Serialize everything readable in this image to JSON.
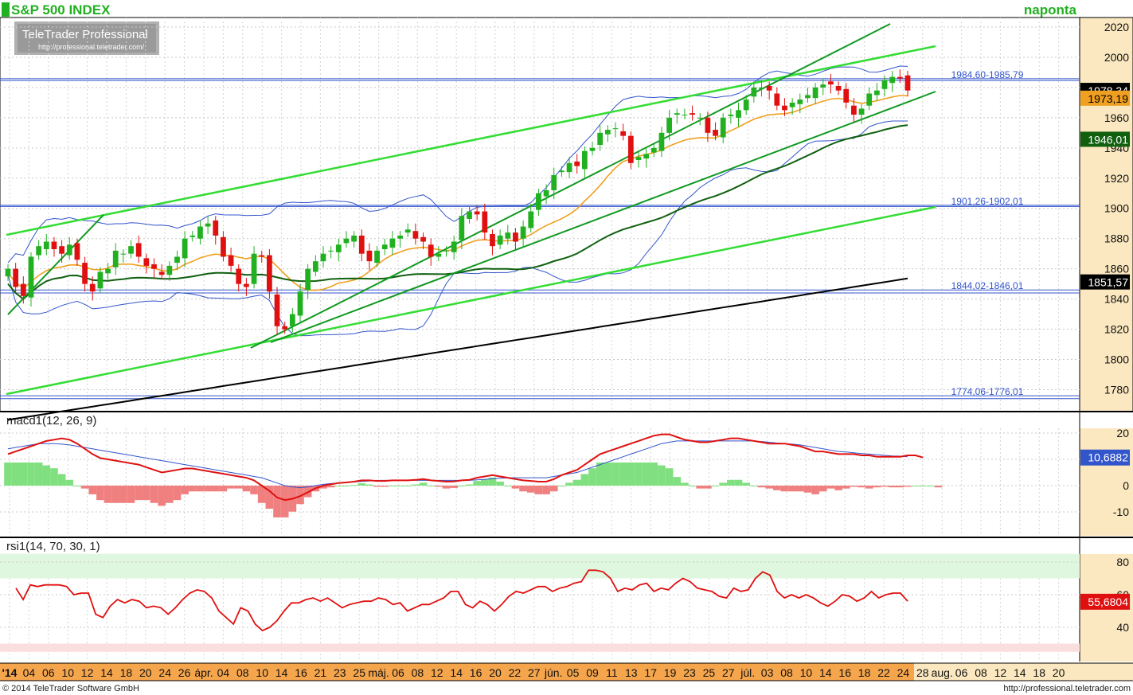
{
  "header": {
    "title": "S&P 500 INDEX",
    "period": "naponta",
    "logo_main": "TeleTrader Professional",
    "logo_url": "http://professional.teletrader.com/"
  },
  "footer": {
    "copyright": "© 2014 TeleTrader Software GmbH",
    "url": "http://professional.teletrader.com"
  },
  "colors": {
    "up": "#20b020",
    "down": "#e01010",
    "axis_bg": "#fbe8c0",
    "date_bar": "#f5a54c",
    "bollinger": "#3355cc",
    "ma_fast": "#f0a020",
    "ma_mid": "#106010",
    "ma_slow": "#000000",
    "channel_light": "#33dd33",
    "channel_dark": "#119922",
    "hline": "#3355cc"
  },
  "chart_data": [
    {
      "type": "candlestick",
      "name": "S&P 500 INDEX",
      "ylim": [
        1770,
        2030
      ],
      "y_ticks": [
        1780,
        1800,
        1820,
        1840,
        1860,
        1880,
        1900,
        1920,
        1940,
        1960,
        1980,
        2000,
        2020
      ],
      "x_labels": [
        "'14",
        "04",
        "06",
        "10",
        "12",
        "14",
        "18",
        "20",
        "24",
        "26",
        "ápr.",
        "04",
        "08",
        "10",
        "14",
        "16",
        "21",
        "23",
        "25",
        "máj.",
        "06",
        "08",
        "12",
        "14",
        "16",
        "20",
        "22",
        "27",
        "jún.",
        "05",
        "09",
        "11",
        "13",
        "17",
        "19",
        "23",
        "25",
        "27",
        "júl.",
        "03",
        "08",
        "10",
        "14",
        "16",
        "18",
        "22",
        "24",
        "28",
        "aug.",
        "06",
        "08",
        "12",
        "14",
        "18",
        "20"
      ],
      "price_tags": [
        {
          "value": "1978,34",
          "num": 1978.34,
          "bg": "#000000"
        },
        {
          "value": "1973,19",
          "num": 1973.19,
          "bg": "#f0a020"
        },
        {
          "value": "1946,01",
          "num": 1946.01,
          "bg": "#106010"
        },
        {
          "value": "1851,57",
          "num": 1851.57,
          "bg": "#000000"
        }
      ],
      "hlines": [
        {
          "label": "1984,60-1985,79",
          "low": 1984.6,
          "high": 1985.79
        },
        {
          "label": "1901,26-1902,01",
          "low": 1901.26,
          "high": 1902.01
        },
        {
          "label": "1844,02-1846,01",
          "low": 1844.02,
          "high": 1846.01
        },
        {
          "label": "1774,06-1776,01",
          "low": 1774.06,
          "high": 1776.01
        }
      ],
      "closes": [
        1860,
        1848,
        1842,
        1868,
        1875,
        1878,
        1873,
        1870,
        1876,
        1866,
        1850,
        1845,
        1858,
        1860,
        1872,
        1870,
        1875,
        1868,
        1862,
        1860,
        1856,
        1862,
        1868,
        1880,
        1882,
        1888,
        1890,
        1882,
        1868,
        1862,
        1850,
        1848,
        1870,
        1868,
        1845,
        1822,
        1820,
        1830,
        1845,
        1860,
        1865,
        1870,
        1872,
        1876,
        1880,
        1882,
        1870,
        1865,
        1872,
        1876,
        1880,
        1882,
        1886,
        1880,
        1878,
        1868,
        1870,
        1872,
        1878,
        1895,
        1898,
        1896,
        1884,
        1875,
        1882,
        1884,
        1878,
        1888,
        1898,
        1910,
        1912,
        1922,
        1925,
        1930,
        1928,
        1938,
        1940,
        1950,
        1952,
        1953,
        1948,
        1930,
        1934,
        1936,
        1940,
        1950,
        1960,
        1963,
        1962,
        1962,
        1960,
        1950,
        1948,
        1960,
        1962,
        1965,
        1972,
        1980,
        1980,
        1978,
        1968,
        1965,
        1970,
        1972,
        1975,
        1980,
        1982,
        1982,
        1978,
        1970,
        1962,
        1966,
        1976,
        1978,
        1985,
        1987,
        1986,
        1978
      ]
    },
    {
      "type": "line",
      "name": "macd1(12, 26, 9)",
      "ylim": [
        -15,
        22
      ],
      "y_ticks": [
        -10,
        0,
        10,
        20
      ],
      "value_tag": "10,6882",
      "macd": [
        12,
        13,
        14,
        15,
        16,
        17,
        17.5,
        18,
        17.5,
        16,
        14,
        12,
        10.5,
        10,
        9.5,
        9,
        8.5,
        8,
        7,
        6,
        5,
        5.5,
        6,
        6.5,
        6.5,
        6,
        5.5,
        5,
        4.5,
        4,
        3.5,
        3,
        2,
        0,
        -2,
        -4.5,
        -5.5,
        -5,
        -4,
        -2.5,
        -1,
        0,
        0.5,
        1,
        1.2,
        1.5,
        2,
        2,
        1.8,
        1.8,
        2,
        2,
        2,
        2.2,
        2.5,
        2,
        1.8,
        1.5,
        1.6,
        2,
        2.2,
        3,
        3.5,
        4,
        3.5,
        3,
        2.5,
        2,
        1.8,
        1.5,
        1.5,
        2.5,
        4,
        5,
        6,
        8,
        10,
        12,
        13,
        14,
        15,
        16,
        17,
        18,
        19,
        19.5,
        19.5,
        18.5,
        17.5,
        17,
        16.5,
        16.5,
        17,
        17.5,
        18,
        18,
        17.5,
        17,
        16.5,
        16,
        16,
        16,
        15.5,
        15,
        14,
        13,
        13,
        12.5,
        12,
        12,
        12,
        11.5,
        11.5,
        11,
        11,
        11,
        11,
        11.5,
        11.5,
        10.7
      ],
      "signal": [
        14,
        14.5,
        15,
        15.5,
        16,
        16,
        16,
        15.8,
        15.5,
        15,
        14.5,
        14,
        13.5,
        13,
        12.5,
        12,
        11.5,
        11,
        10.5,
        10,
        9.5,
        9,
        8.5,
        8,
        7.5,
        7,
        6.5,
        6,
        5.5,
        5,
        4.5,
        4,
        3.5,
        3,
        2,
        1,
        0,
        -0.5,
        -0.8,
        -0.5,
        0,
        0.5,
        0.8,
        1,
        1.2,
        1.4,
        1.6,
        1.8,
        2,
        2,
        2,
        2,
        2,
        2,
        2,
        2,
        2,
        2,
        2,
        2,
        2,
        2.2,
        2.4,
        2.6,
        2.8,
        3,
        3,
        3,
        3,
        3,
        3,
        3.5,
        4,
        4.5,
        5,
        6,
        7,
        8,
        9,
        10,
        11,
        12,
        13,
        14,
        15,
        16,
        16.5,
        17,
        17,
        17,
        17,
        17,
        17,
        17,
        17,
        17,
        17,
        17,
        16.8,
        16.5,
        16.2,
        16,
        15.8,
        15.5,
        15,
        14.5,
        14,
        13.5,
        13,
        12.8,
        12.5,
        12.2,
        12,
        11.8,
        11.5,
        11.3,
        11.2,
        11
      ],
      "hist": [
        4,
        4,
        4,
        4,
        4,
        3.5,
        3,
        2,
        1,
        0,
        -0.5,
        -1.5,
        -2.5,
        -3,
        -3,
        -3,
        -3,
        -2.5,
        -2.5,
        -3,
        -3.5,
        -3,
        -2.5,
        -1.5,
        -1,
        -1,
        -1,
        -1,
        -1,
        -0.5,
        -0.5,
        -1,
        -1.5,
        -3,
        -4,
        -5.5,
        -5.5,
        -4.5,
        -3.2,
        -2,
        -1,
        -0.5,
        -0.3,
        0,
        0,
        0.1,
        0.4,
        0.2,
        -0.2,
        -0.2,
        0,
        0,
        0,
        0.2,
        0.5,
        0,
        -0.2,
        -0.5,
        -0.4,
        0,
        0.2,
        0.8,
        1.1,
        1.4,
        0.7,
        0,
        -0.5,
        -1,
        -1.2,
        -1.5,
        -1.5,
        -1,
        0,
        0.5,
        1,
        2,
        3,
        4,
        4,
        4,
        4,
        4,
        4,
        4,
        4,
        3.5,
        3,
        1.5,
        0.5,
        0,
        -0.5,
        -0.5,
        0,
        0.5,
        1,
        1,
        0.5,
        0,
        -0.3,
        -0.5,
        -0.8,
        -1,
        -1,
        -1,
        -1.2,
        -1.5,
        -1,
        -0.5,
        -0.8,
        -0.5,
        -0.2,
        -0.3,
        -0.5,
        -0.3,
        -0.2,
        -0.3,
        -0.3,
        -0.2,
        0,
        0,
        0,
        -0.3
      ]
    },
    {
      "type": "line",
      "name": "rsi1(14, 70, 30, 1)",
      "ylim": [
        25,
        85
      ],
      "y_ticks": [
        40,
        60,
        80
      ],
      "bands": {
        "upper": 70,
        "lower": 30
      },
      "value_tag": "55,6804",
      "values": [
        64,
        57,
        66,
        65,
        66,
        66,
        66,
        65,
        60,
        61,
        61,
        48,
        46,
        53,
        57,
        55,
        57,
        56,
        52,
        53,
        52,
        48,
        52,
        57,
        61,
        63,
        62,
        58,
        50,
        46,
        42,
        52,
        50,
        42,
        38,
        40,
        44,
        50,
        55,
        55,
        57,
        58,
        56,
        58,
        55,
        52,
        54,
        55,
        56,
        56,
        58,
        57,
        54,
        55,
        50,
        52,
        54,
        54,
        56,
        58,
        62,
        62,
        54,
        52,
        56,
        54,
        50,
        54,
        59,
        62,
        61,
        63,
        65,
        65,
        62,
        64,
        65,
        67,
        68,
        75,
        75,
        74,
        70,
        62,
        64,
        63,
        66,
        67,
        62,
        64,
        63,
        67,
        70,
        68,
        64,
        63,
        62,
        59,
        58,
        64,
        62,
        63,
        70,
        74,
        72,
        62,
        58,
        60,
        58,
        60,
        58,
        55,
        53,
        56,
        60,
        59,
        56,
        58,
        62,
        58,
        60,
        61,
        61,
        56
      ]
    }
  ]
}
